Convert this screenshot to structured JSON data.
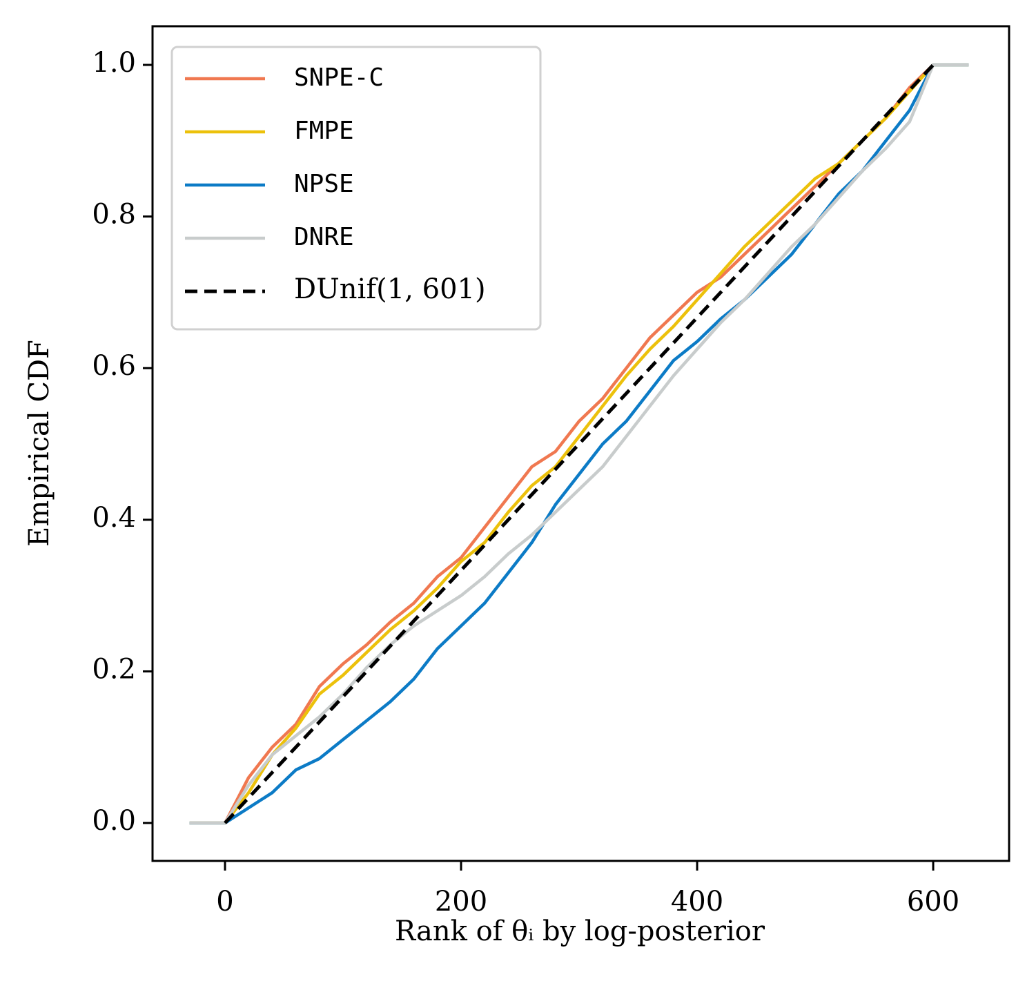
{
  "chart_data": {
    "type": "line",
    "xlabel": "Rank of θᵢ by log-posterior",
    "ylabel": "Empirical CDF",
    "xlim": [
      -61.4,
      664.3
    ],
    "ylim": [
      -0.05,
      1.051
    ],
    "xticks": [
      0,
      200,
      400,
      600
    ],
    "yticks": [
      {
        "value": 0,
        "label": "0.0"
      },
      0.2,
      0.4,
      0.6,
      0.8,
      {
        "value": 1,
        "label": "1.0"
      }
    ],
    "legend": "upper left",
    "series": [
      {
        "name": "SNPE-C",
        "color": "#f07850",
        "linestyle": "solid",
        "x": [
          -30,
          0,
          20,
          40,
          60,
          80,
          100,
          120,
          140,
          160,
          180,
          200,
          220,
          240,
          260,
          280,
          300,
          320,
          340,
          360,
          380,
          400,
          420,
          440,
          460,
          480,
          500,
          520,
          540,
          560,
          580,
          600,
          630
        ],
        "values": [
          0,
          0,
          0.06,
          0.1,
          0.13,
          0.18,
          0.21,
          0.235,
          0.265,
          0.29,
          0.325,
          0.35,
          0.39,
          0.43,
          0.47,
          0.49,
          0.53,
          0.56,
          0.6,
          0.64,
          0.67,
          0.7,
          0.72,
          0.75,
          0.78,
          0.81,
          0.84,
          0.87,
          0.9,
          0.93,
          0.97,
          1,
          1
        ]
      },
      {
        "name": "FMPE",
        "color": "#ecc10b",
        "linestyle": "solid",
        "x": [
          -30,
          0,
          20,
          40,
          60,
          80,
          100,
          120,
          140,
          160,
          180,
          200,
          220,
          240,
          260,
          280,
          300,
          320,
          340,
          360,
          380,
          400,
          420,
          440,
          460,
          480,
          500,
          520,
          540,
          560,
          580,
          600,
          630
        ],
        "values": [
          0,
          0,
          0.04,
          0.09,
          0.125,
          0.17,
          0.195,
          0.225,
          0.255,
          0.28,
          0.31,
          0.345,
          0.37,
          0.41,
          0.445,
          0.47,
          0.51,
          0.55,
          0.59,
          0.625,
          0.655,
          0.69,
          0.725,
          0.76,
          0.79,
          0.82,
          0.85,
          0.87,
          0.9,
          0.93,
          0.965,
          1,
          1
        ]
      },
      {
        "name": "NPSE",
        "color": "#0c7bc6",
        "linestyle": "solid",
        "x": [
          -30,
          0,
          20,
          40,
          60,
          80,
          100,
          120,
          140,
          160,
          180,
          200,
          220,
          240,
          260,
          280,
          300,
          320,
          340,
          360,
          380,
          400,
          420,
          440,
          460,
          480,
          500,
          520,
          540,
          560,
          580,
          600,
          630
        ],
        "values": [
          0,
          0,
          0.02,
          0.04,
          0.07,
          0.085,
          0.11,
          0.135,
          0.16,
          0.19,
          0.23,
          0.26,
          0.29,
          0.33,
          0.37,
          0.42,
          0.46,
          0.5,
          0.53,
          0.57,
          0.61,
          0.635,
          0.665,
          0.69,
          0.72,
          0.75,
          0.79,
          0.83,
          0.86,
          0.9,
          0.94,
          1,
          1
        ]
      },
      {
        "name": "DNRE",
        "color": "#c8cccc",
        "linestyle": "solid",
        "x": [
          -30,
          0,
          20,
          40,
          60,
          80,
          100,
          120,
          140,
          160,
          180,
          200,
          220,
          240,
          260,
          280,
          300,
          320,
          340,
          360,
          380,
          400,
          420,
          440,
          460,
          480,
          500,
          520,
          540,
          560,
          580,
          600,
          630
        ],
        "values": [
          0,
          0,
          0.05,
          0.09,
          0.115,
          0.14,
          0.17,
          0.205,
          0.235,
          0.26,
          0.28,
          0.3,
          0.325,
          0.355,
          0.38,
          0.41,
          0.44,
          0.47,
          0.51,
          0.55,
          0.59,
          0.625,
          0.66,
          0.69,
          0.725,
          0.76,
          0.79,
          0.825,
          0.86,
          0.89,
          0.925,
          1,
          1
        ]
      },
      {
        "name": "DUnif(1, 601)",
        "color": "#000000",
        "linestyle": "dashed",
        "x": [
          0,
          600
        ],
        "values": [
          0,
          1
        ]
      }
    ]
  }
}
